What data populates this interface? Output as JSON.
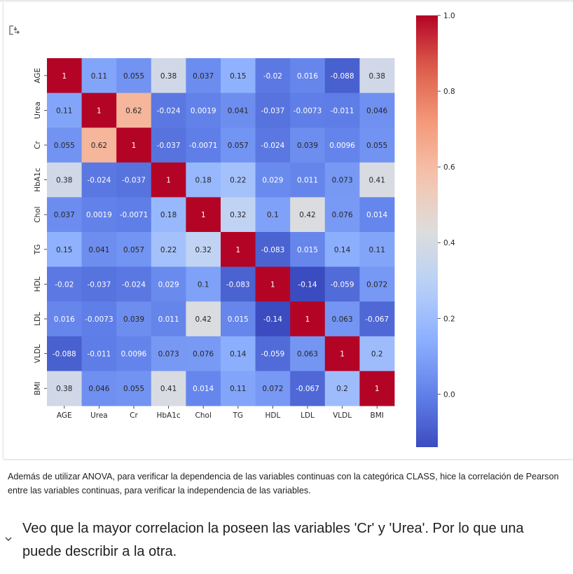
{
  "cell": {
    "output_icon": "output-toggle-icon"
  },
  "chart_data": {
    "type": "heatmap",
    "title": "",
    "xlabel": "",
    "ylabel": "",
    "colormap": "coolwarm",
    "vmin": -0.14,
    "vmax": 1.0,
    "x": [
      "AGE",
      "Urea",
      "Cr",
      "HbA1c",
      "Chol",
      "TG",
      "HDL",
      "LDL",
      "VLDL",
      "BMI"
    ],
    "y": [
      "AGE",
      "Urea",
      "Cr",
      "HbA1c",
      "Chol",
      "TG",
      "HDL",
      "LDL",
      "VLDL",
      "BMI"
    ],
    "values": [
      [
        1,
        0.11,
        0.055,
        0.38,
        0.037,
        0.15,
        -0.02,
        0.016,
        -0.088,
        0.38
      ],
      [
        0.11,
        1,
        0.62,
        -0.024,
        0.0019,
        0.041,
        -0.037,
        -0.0073,
        -0.011,
        0.046
      ],
      [
        0.055,
        0.62,
        1,
        -0.037,
        -0.0071,
        0.057,
        -0.024,
        0.039,
        0.0096,
        0.055
      ],
      [
        0.38,
        -0.024,
        -0.037,
        1,
        0.18,
        0.22,
        0.029,
        0.011,
        0.073,
        0.41
      ],
      [
        0.037,
        0.0019,
        -0.0071,
        0.18,
        1,
        0.32,
        0.1,
        0.42,
        0.076,
        0.014
      ],
      [
        0.15,
        0.041,
        0.057,
        0.22,
        0.32,
        1,
        -0.083,
        0.015,
        0.14,
        0.11
      ],
      [
        -0.02,
        -0.037,
        -0.024,
        0.029,
        0.1,
        -0.083,
        1,
        -0.14,
        -0.059,
        0.072
      ],
      [
        0.016,
        -0.0073,
        0.039,
        0.011,
        0.42,
        0.015,
        -0.14,
        1,
        0.063,
        -0.067
      ],
      [
        -0.088,
        -0.011,
        0.0096,
        0.073,
        0.076,
        0.14,
        -0.059,
        0.063,
        1,
        0.2
      ],
      [
        0.38,
        0.046,
        0.055,
        0.41,
        0.014,
        0.11,
        0.072,
        -0.067,
        0.2,
        1
      ]
    ],
    "colorbar_ticks": [
      0.0,
      0.2,
      0.4,
      0.6,
      0.8,
      1.0
    ],
    "colorbar_tick_labels": [
      "0.0",
      "0.2",
      "0.4",
      "0.6",
      "0.8",
      "1.0"
    ],
    "annotated": true,
    "grid": false,
    "legend": "colorbar-right"
  },
  "text": {
    "paragraph": "Además de utilizar ANOVA, para verificar la dependencia de las variables continuas con la categórica CLASS, hice la correlación de Pearson entre las variables continuas, para verificar la independencia de las variables.",
    "followup": "Veo que la mayor correlacion la poseen las variables 'Cr' y 'Urea'. Por lo que una puede describir a la otra.",
    "chevron_icon": "chevron-down-icon"
  }
}
